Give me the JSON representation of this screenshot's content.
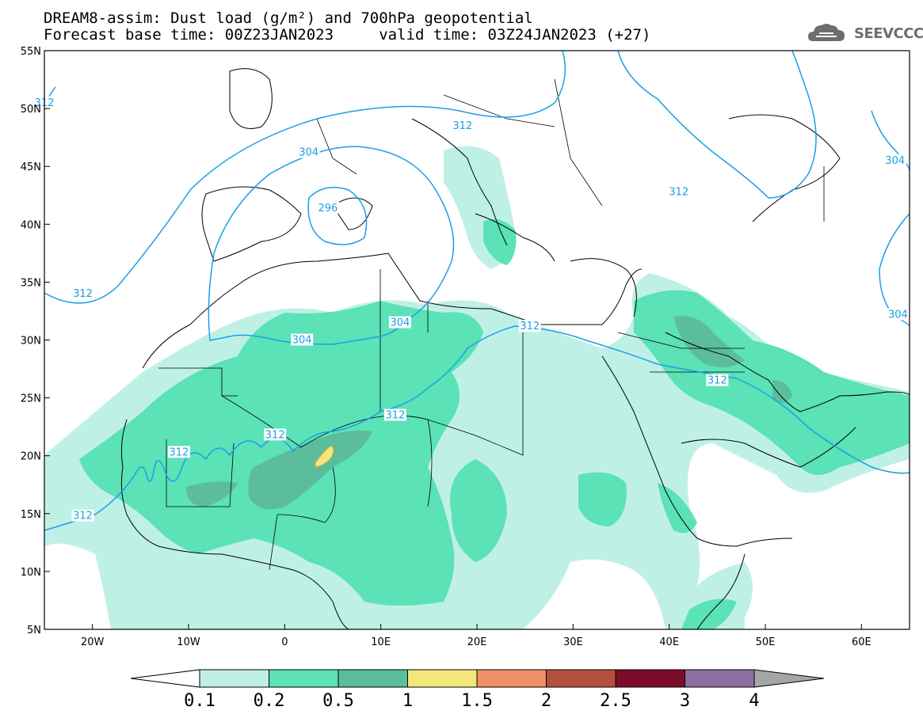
{
  "header": {
    "title_line1": "DREAM8-assim: Dust load (g/m²) and 700hPa geopotential",
    "title_line2": "Forecast base time: 00Z23JAN2023     valid time: 03Z24JAN2023 (+27)",
    "logo_text": "SEEVCCC"
  },
  "map": {
    "lat_ticks": [
      "55N",
      "50N",
      "45N",
      "40N",
      "35N",
      "30N",
      "25N",
      "20N",
      "15N",
      "10N",
      "5N"
    ],
    "lon_ticks": [
      "20W",
      "10W",
      "0",
      "10E",
      "20E",
      "30E",
      "40E",
      "50E",
      "60E"
    ],
    "contour_labels": [
      {
        "text": "312",
        "lon": -25,
        "lat": 50.5
      },
      {
        "text": "312",
        "lon": 18.5,
        "lat": 48.5
      },
      {
        "text": "304",
        "lon": 2.5,
        "lat": 46.2
      },
      {
        "text": "296",
        "lon": 4.5,
        "lat": 41.4
      },
      {
        "text": "312",
        "lon": 41,
        "lat": 42.8
      },
      {
        "text": "304",
        "lon": 63.5,
        "lat": 45.5
      },
      {
        "text": "312",
        "lon": -21,
        "lat": 34.0
      },
      {
        "text": "304",
        "lon": 1.8,
        "lat": 30.0
      },
      {
        "text": "304",
        "lon": 12,
        "lat": 31.5
      },
      {
        "text": "312",
        "lon": 25.5,
        "lat": 31.2
      },
      {
        "text": "304",
        "lon": 63.8,
        "lat": 32.2
      },
      {
        "text": "312",
        "lon": 45,
        "lat": 26.5
      },
      {
        "text": "312",
        "lon": -1,
        "lat": 21.8
      },
      {
        "text": "312",
        "lon": 11.5,
        "lat": 23.5
      },
      {
        "text": "312",
        "lon": -11,
        "lat": 20.3
      },
      {
        "text": "312",
        "lon": -21,
        "lat": 14.8
      }
    ]
  },
  "colorbar": {
    "labels": [
      "0.1",
      "0.2",
      "0.5",
      "1",
      "1.5",
      "2",
      "2.5",
      "3",
      "4"
    ],
    "colors": [
      "#bff0e6",
      "#5be2b6",
      "#5bbd9b",
      "#f2e77a",
      "#ef9067",
      "#b5503c",
      "#7d0b2a",
      "#8c6fa0"
    ],
    "under_color": "#ffffff",
    "over_color": "#a6a6a6"
  },
  "colors": {
    "contour": "#1a9fe8",
    "coast": "#000000"
  }
}
